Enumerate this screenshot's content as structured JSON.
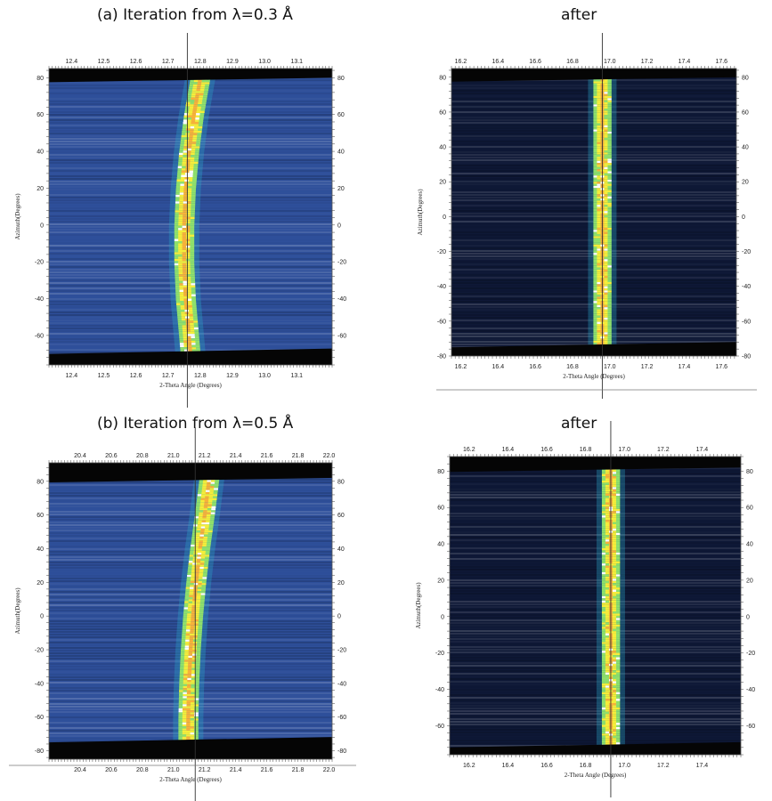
{
  "chart_data": [
    {
      "type": "heatmap",
      "title": "(a) Iteration from λ=0.3 Å",
      "xlabel": "2-Theta Angle (Degrees)",
      "ylabel": "Azimuth(Degrees)",
      "xlim": [
        12.33,
        13.21
      ],
      "ylim": [
        -76,
        85
      ],
      "x_ticks": [
        12.4,
        12.5,
        12.6,
        12.7,
        12.8,
        12.9,
        13.0,
        13.1
      ],
      "y_ticks": [
        80,
        60,
        40,
        20,
        0,
        -20,
        -40,
        -60
      ],
      "marker_x": 12.76,
      "ring": {
        "azimuth": [
          80,
          60,
          40,
          20,
          0,
          -20,
          -40,
          -60,
          -70
        ],
        "two_theta": [
          12.8,
          12.78,
          12.765,
          12.755,
          12.75,
          12.75,
          12.755,
          12.765,
          12.77
        ]
      },
      "colors": {
        "background": "#2e4f9a",
        "mask": "#050505"
      }
    },
    {
      "type": "heatmap",
      "title": "after",
      "xlabel": "2-Theta Angle (Degrees)",
      "ylabel": "Azimuth(Degrees)",
      "xlim": [
        16.15,
        17.68
      ],
      "ylim": [
        -80,
        85
      ],
      "x_ticks": [
        16.2,
        16.4,
        16.6,
        16.8,
        17.0,
        17.2,
        17.4,
        17.6
      ],
      "y_ticks": [
        80,
        60,
        40,
        20,
        0,
        -20,
        -40,
        -60,
        -80
      ],
      "marker_x": 16.96,
      "ring": {
        "azimuth": [
          80,
          0,
          -75
        ],
        "two_theta": [
          16.96,
          16.96,
          16.96
        ]
      },
      "colors": {
        "background": "#0e1836",
        "mask": "#050505"
      }
    },
    {
      "type": "heatmap",
      "title": "(b) Iteration from λ=0.5 Å",
      "xlabel": "2-Theta Angle (Degrees)",
      "ylabel": "Azimuth(Degrees)",
      "xlim": [
        20.2,
        22.02
      ],
      "ylim": [
        -85,
        91
      ],
      "x_ticks": [
        20.4,
        20.6,
        20.8,
        21.0,
        21.2,
        21.4,
        21.6,
        21.8,
        22.0
      ],
      "y_ticks": [
        80,
        60,
        40,
        20,
        0,
        -20,
        -40,
        -60,
        -80
      ],
      "marker_x": 21.14,
      "ring": {
        "azimuth": [
          82,
          60,
          40,
          20,
          0,
          -20,
          -40,
          -60,
          -75
        ],
        "two_theta": [
          21.23,
          21.2,
          21.17,
          21.145,
          21.125,
          21.11,
          21.1,
          21.095,
          21.095
        ]
      },
      "colors": {
        "background": "#2e4f9a",
        "mask": "#050505"
      }
    },
    {
      "type": "heatmap",
      "title": "after",
      "xlabel": "2-Theta Angle (Degrees)",
      "ylabel": "Azimuth(Degrees)",
      "xlim": [
        16.1,
        17.6
      ],
      "ylim": [
        -76,
        88
      ],
      "x_ticks": [
        16.2,
        16.4,
        16.6,
        16.8,
        17.0,
        17.2,
        17.4
      ],
      "y_ticks": [
        80,
        60,
        40,
        20,
        0,
        -20,
        -40,
        -60
      ],
      "y_ticks_right": [
        80,
        60,
        40,
        20,
        0,
        -20,
        -40,
        -60
      ],
      "marker_x": 16.93,
      "ring": {
        "azimuth": [
          82,
          0,
          -72
        ],
        "two_theta": [
          16.93,
          16.93,
          16.93
        ]
      },
      "colors": {
        "background": "#0e1836",
        "mask": "#050505"
      }
    }
  ]
}
